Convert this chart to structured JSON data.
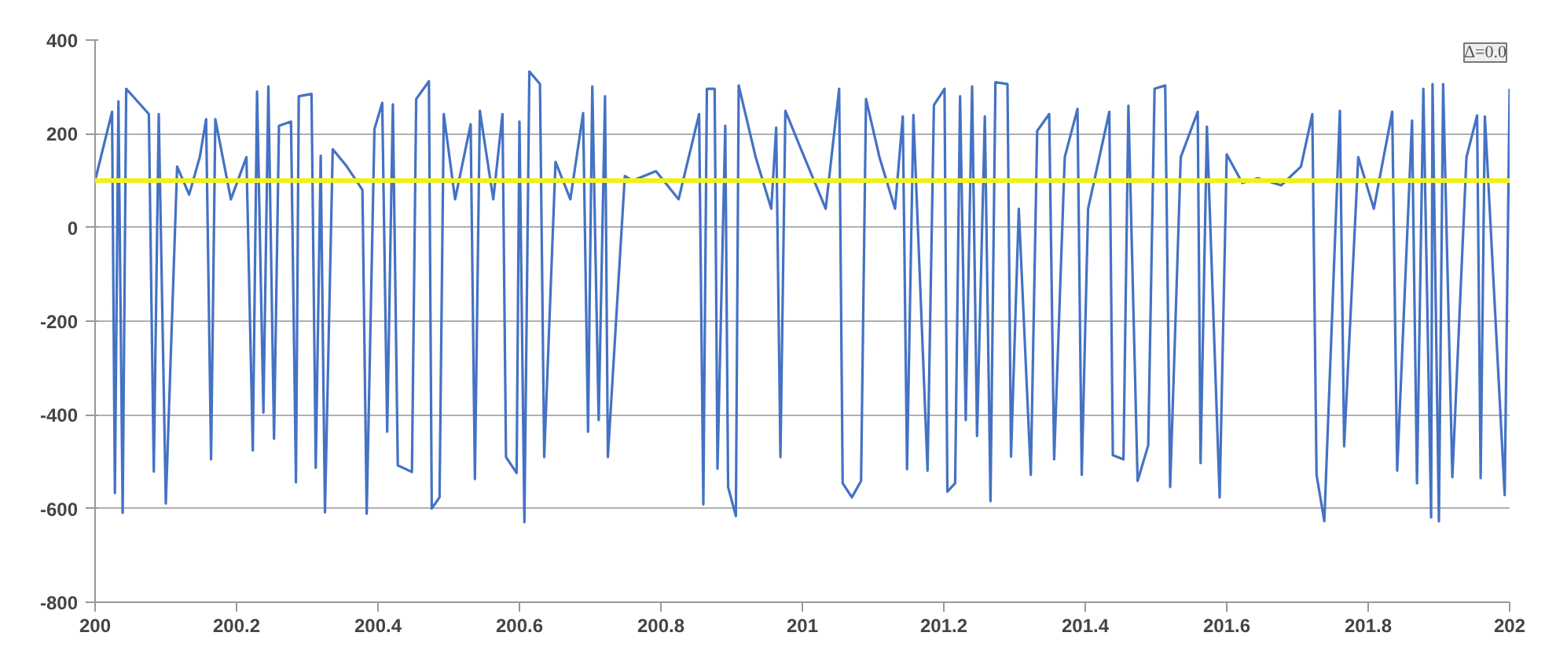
{
  "chart_data": {
    "type": "line",
    "x": [
      200.0,
      200.024,
      200.028,
      200.033,
      200.039,
      200.044,
      200.076,
      200.083,
      200.09,
      200.1,
      200.116,
      200.133,
      200.148,
      200.157,
      200.164,
      200.17,
      200.192,
      200.214,
      200.223,
      200.229,
      200.238,
      200.245,
      200.253,
      200.26,
      200.277,
      200.284,
      200.288,
      200.306,
      200.312,
      200.319,
      200.325,
      200.336,
      200.356,
      200.378,
      200.384,
      200.395,
      200.406,
      200.413,
      200.421,
      200.428,
      200.448,
      200.454,
      200.472,
      200.476,
      200.487,
      200.493,
      200.509,
      200.531,
      200.537,
      200.544,
      200.563,
      200.576,
      200.581,
      200.596,
      200.6,
      200.607,
      200.614,
      200.629,
      200.635,
      200.651,
      200.672,
      200.69,
      200.697,
      200.703,
      200.712,
      200.721,
      200.725,
      200.749,
      200.76,
      200.793,
      200.825,
      200.854,
      200.86,
      200.865,
      200.876,
      200.88,
      200.891,
      200.895,
      200.906,
      200.91,
      200.934,
      200.956,
      200.963,
      200.969,
      200.976,
      201.0,
      201.033,
      201.052,
      201.057,
      201.07,
      201.083,
      201.09,
      201.109,
      201.131,
      201.142,
      201.148,
      201.157,
      201.177,
      201.186,
      201.201,
      201.205,
      201.216,
      201.223,
      201.231,
      201.24,
      201.247,
      201.258,
      201.266,
      201.273,
      201.29,
      201.295,
      201.306,
      201.323,
      201.332,
      201.349,
      201.356,
      201.371,
      201.389,
      201.395,
      201.404,
      201.434,
      201.439,
      201.454,
      201.461,
      201.474,
      201.489,
      201.498,
      201.513,
      201.52,
      201.535,
      201.559,
      201.563,
      201.572,
      201.59,
      201.6,
      201.622,
      201.644,
      201.677,
      201.705,
      201.721,
      201.727,
      201.738,
      201.76,
      201.766,
      201.786,
      201.808,
      201.834,
      201.841,
      201.862,
      201.869,
      201.878,
      201.889,
      201.891,
      201.9,
      201.906,
      201.919,
      201.939,
      201.954,
      201.959,
      201.965,
      201.993,
      202.0
    ],
    "series": [
      {
        "color": "#4472c4",
        "values": [
          100,
          247,
          -567,
          269,
          -609,
          296,
          242,
          -521,
          242,
          -589,
          130,
          70,
          150,
          231,
          -495,
          231,
          60,
          150,
          -476,
          290,
          -395,
          301,
          -451,
          217,
          226,
          -544,
          280,
          285,
          -513,
          153,
          -608,
          167,
          130,
          80,
          -611,
          210,
          266,
          -436,
          263,
          -508,
          -522,
          274,
          312,
          -600,
          -576,
          242,
          60,
          220,
          -537,
          249,
          60,
          242,
          -490,
          -524,
          226,
          -629,
          333,
          306,
          -490,
          140,
          60,
          244,
          -436,
          301,
          -411,
          280,
          -490,
          110,
          100,
          120,
          60,
          242,
          -591,
          296,
          296,
          -515,
          217,
          -554,
          -616,
          303,
          150,
          40,
          213,
          -490,
          249,
          160,
          40,
          296,
          -546,
          -576,
          -541,
          274,
          150,
          40,
          237,
          -516,
          240,
          -519,
          261,
          296,
          -564,
          -546,
          280,
          -411,
          301,
          -445,
          237,
          -584,
          310,
          306,
          -489,
          40,
          -528,
          206,
          242,
          -495,
          150,
          253,
          -528,
          40,
          247,
          -486,
          -495,
          260,
          -541,
          -465,
          296,
          303,
          -554,
          150,
          247,
          -503,
          215,
          -576,
          156,
          95,
          105,
          90,
          130,
          242,
          -528,
          -627,
          249,
          -467,
          150,
          40,
          247,
          -519,
          228,
          -546,
          296,
          -619,
          306,
          -627,
          306,
          -533,
          150,
          239,
          -535,
          237,
          -571,
          296
        ]
      }
    ],
    "xlim": [
      200,
      202
    ],
    "xticks": [
      200,
      200.2,
      200.4,
      200.6,
      200.8,
      201,
      201.2,
      201.4,
      201.6,
      201.8,
      202
    ],
    "ylim": [
      -800,
      400
    ],
    "yticks": [
      -800,
      -600,
      -400,
      -200,
      0,
      200,
      400
    ],
    "grid": "y",
    "line_style": "solid",
    "ref_lines": [
      {
        "axis": "y",
        "value": 100,
        "color": "#f0f020",
        "line_style": "solid"
      }
    ],
    "annotations": [
      "Δ=0.0"
    ]
  }
}
